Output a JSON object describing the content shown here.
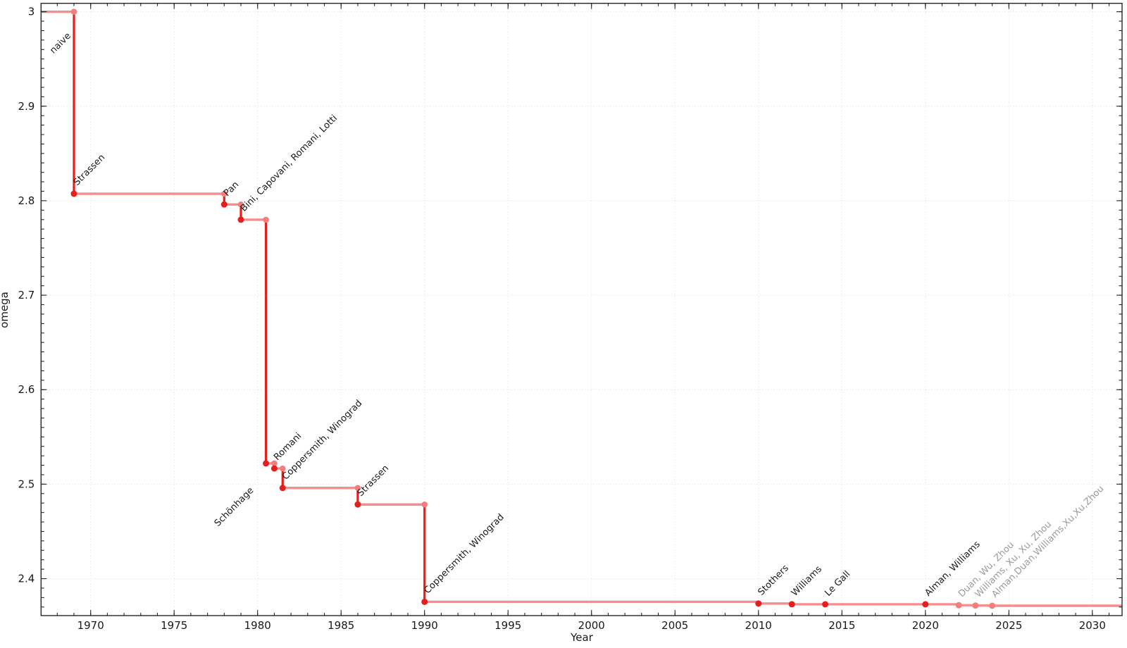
{
  "chart_data": {
    "type": "step-line",
    "title": "",
    "xlabel": "Year",
    "ylabel": "omega",
    "xlim": [
      1967.03,
      2031.78
    ],
    "ylim": [
      2.3609,
      3.0089
    ],
    "grid": true,
    "x_major_ticks": [
      1970,
      1975,
      1980,
      1985,
      1990,
      1995,
      2000,
      2005,
      2010,
      2015,
      2020,
      2025,
      2030
    ],
    "x_minor_step": 1,
    "y_major_ticks": [
      {
        "value": 3.0,
        "label": "3"
      },
      {
        "value": 2.9,
        "label": "2.9"
      },
      {
        "value": 2.8,
        "label": "2.8"
      },
      {
        "value": 2.7,
        "label": "2.7"
      },
      {
        "value": 2.6,
        "label": "2.6"
      },
      {
        "value": 2.5,
        "label": "2.5"
      },
      {
        "value": 2.4,
        "label": "2.4"
      }
    ],
    "y_minor_step": 0.01,
    "start_omega": 3,
    "start_label": {
      "text": "naive",
      "year": 1969,
      "omega": 3,
      "dx": -29,
      "dy": 60,
      "anchor": "start",
      "color": "dark"
    },
    "points": [
      {
        "year": 1969,
        "omega": 2.8074,
        "label": "Strassen",
        "label_color": "dark",
        "marker": "red"
      },
      {
        "year": 1978,
        "omega": 2.796,
        "label": "Pan",
        "label_color": "dark",
        "marker": "red"
      },
      {
        "year": 1979,
        "omega": 2.7799,
        "label": "Bini, Capovani, Romani, Lotti",
        "label_color": "dark",
        "marker": "red"
      },
      {
        "year": 1980.5,
        "omega": 2.522,
        "label": "Schönhage",
        "label_color": "dark",
        "marker": "red",
        "label_anchor": "end",
        "label_dx": -17,
        "label_dy": 39
      },
      {
        "year": 1981,
        "omega": 2.5166,
        "label": "Romani",
        "label_color": "dark",
        "marker": "red"
      },
      {
        "year": 1981.5,
        "omega": 2.496,
        "label": "Coppersmith, Winograd",
        "label_color": "dark",
        "marker": "red"
      },
      {
        "year": 1986,
        "omega": 2.4785,
        "label": "Strassen",
        "label_color": "dark",
        "marker": "red"
      },
      {
        "year": 1990,
        "omega": 2.3755,
        "label": "Coppersmith, Winograd",
        "label_color": "dark",
        "marker": "red"
      },
      {
        "year": 2010,
        "omega": 2.3737,
        "label": "Stothers",
        "label_color": "dark",
        "marker": "red"
      },
      {
        "year": 2012,
        "omega": 2.3729,
        "label": "Williams",
        "label_color": "dark",
        "marker": "red"
      },
      {
        "year": 2014,
        "omega": 2.3728639,
        "label": "Le Gall",
        "label_color": "dark",
        "marker": "red"
      },
      {
        "year": 2020,
        "omega": 2.3728596,
        "label": "Alman, Williams",
        "label_color": "dark",
        "marker": "red"
      },
      {
        "year": 2022,
        "omega": 2.371866,
        "label": "Duan, Wu, Zhou",
        "label_color": "gray",
        "marker": "pink"
      },
      {
        "year": 2023,
        "omega": 2.371552,
        "label": "Williams, Xu, Xu, Zhou",
        "label_color": "gray",
        "marker": "pink"
      },
      {
        "year": 2024,
        "omega": 2.371339,
        "label": "Alman,Duan,Williams,Xu,Xu,Zhou",
        "label_color": "gray",
        "marker": "pink"
      }
    ],
    "label_rotation": -45,
    "colors": {
      "line_light": "#f48e8e",
      "line_red": "#e3201c",
      "dot_red": "#e3201c",
      "dot_pink": "#f37e7e",
      "label_dark": "#1a1a1a",
      "label_gray": "#9b9b9b",
      "grid": "#d9d9d9",
      "border": "#262626",
      "tick_text": "#191919"
    }
  }
}
